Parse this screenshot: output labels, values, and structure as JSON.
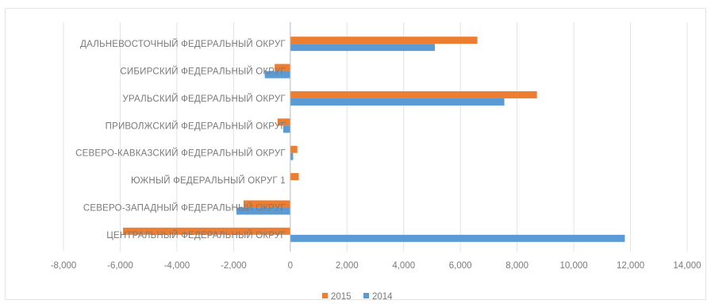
{
  "chart_data": {
    "type": "bar",
    "orientation": "horizontal",
    "categories": [
      "ДАЛЬНЕВОСТОЧНЫЙ ФЕДЕРАЛЬНЫЙ ОКРУГ",
      "СИБИРСКИЙ ФЕДЕРАЛЬНЫЙ ОКРУГ",
      "УРАЛЬСКИЙ ФЕДЕРАЛЬНЫЙ ОКРУГ",
      "ПРИВОЛЖСКИЙ ФЕДЕРАЛЬНЫЙ ОКРУГ",
      "СЕВЕРО-КАВКАЗСКИЙ ФЕДЕРАЛЬНЫЙ ОКРУГ",
      "ЮЖНЫЙ ФЕДЕРАЛЬНЫЙ ОКРУГ 1",
      "СЕВЕРО-ЗАПАДНЫЙ ФЕДЕРАЛЬНЫЙ ОКРУГ",
      "ЦЕНТРАЛЬНЫЙ ФЕДЕРАЛЬНЫЙ ОКРУГ"
    ],
    "series": [
      {
        "name": "2015",
        "color": "#ed7d31",
        "values": [
          6600,
          -550,
          8700,
          -450,
          250,
          300,
          -1650,
          -5900
        ]
      },
      {
        "name": "2014",
        "color": "#5b9bd5",
        "values": [
          5100,
          -900,
          7550,
          -250,
          100,
          0,
          -1900,
          11800
        ]
      }
    ],
    "xlim": [
      -8000,
      14000
    ],
    "xticks": [
      "-8,000",
      "-6,000",
      "-4,000",
      "-2,000",
      "0",
      "2,000",
      "4,000",
      "6,000",
      "8,000",
      "10,000",
      "12,000",
      "14,000"
    ],
    "xtick_values": [
      -8000,
      -6000,
      -4000,
      -2000,
      0,
      2000,
      4000,
      6000,
      8000,
      10000,
      12000,
      14000
    ],
    "grid": "vertical",
    "legend_position": "bottom",
    "title": "",
    "xlabel": "",
    "ylabel": ""
  }
}
